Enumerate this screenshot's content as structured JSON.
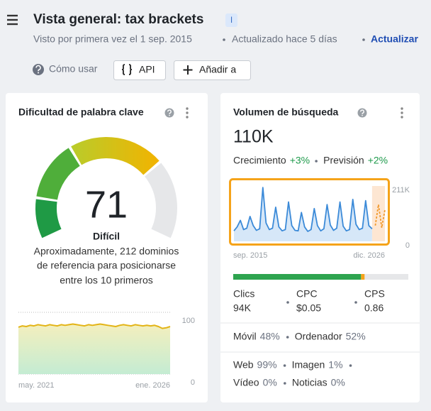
{
  "header": {
    "title": "Vista general: tax brackets",
    "intent_badge": "I",
    "first_seen": "Visto por primera vez el 1 sep. 2015",
    "updated": "Actualizado hace 5 días",
    "update_link": "Actualizar"
  },
  "toolbar": {
    "how_to": "Cómo usar",
    "api_button": "API",
    "add_button": "Añadir a"
  },
  "difficulty_card": {
    "title": "Dificultad de palabra clave",
    "score": 71,
    "gauge_lim": [
      0,
      100
    ],
    "level": "Difícil",
    "description_lines": [
      "Aproximadamente, 212 dominios",
      "de referencia para posicionarse",
      "entre los 10 primeros"
    ],
    "history": {
      "type": "area",
      "color": "#e3b416",
      "values": [
        76,
        78,
        77,
        79,
        78,
        80,
        79,
        78,
        80,
        79,
        78,
        80,
        79,
        80,
        81,
        80,
        79,
        78,
        80,
        79,
        80,
        81,
        80,
        79,
        78,
        77,
        79,
        80,
        79,
        78,
        80,
        79,
        78,
        79,
        78,
        79,
        77,
        74,
        75,
        77
      ],
      "ylim": [
        0,
        100
      ],
      "yticks": [
        0,
        100
      ],
      "x_start": "may. 2021",
      "x_end": "ene. 2026"
    }
  },
  "volume_card": {
    "title": "Volumen de búsqueda",
    "volume": "110K",
    "growth_label": "Crecimiento",
    "growth": "+3%",
    "forecast_label": "Previsión",
    "forecast": "+2%",
    "trend": {
      "type": "area",
      "color": "#3b8ad8",
      "values": [
        40,
        55,
        80,
        45,
        50,
        95,
        60,
        42,
        48,
        205,
        70,
        45,
        50,
        130,
        55,
        40,
        45,
        150,
        60,
        42,
        40,
        110,
        55,
        38,
        45,
        125,
        60,
        40,
        48,
        140,
        62,
        42,
        50,
        150,
        58,
        40,
        45,
        160,
        65,
        45,
        50,
        155,
        60,
        48
      ],
      "forecast_values": [
        60,
        140,
        52,
        120
      ],
      "forecast_color": "#f29a2e",
      "ylim": [
        0,
        211
      ],
      "yticks": [
        0,
        {
          "value": 211,
          "label": "211K"
        }
      ],
      "x_start": "sep. 2015",
      "x_end": "dic. 2026"
    },
    "traffic_split": [
      {
        "color": "#2ea44f",
        "value": 73
      },
      {
        "color": "#f5a31a",
        "value": 2
      }
    ],
    "stats": [
      {
        "label": "Clics",
        "value": "94K"
      },
      {
        "label": "CPC",
        "value": "$0.05"
      },
      {
        "label": "CPS",
        "value": "0.86"
      }
    ],
    "devices": [
      {
        "label": "Móvil",
        "value": "48%"
      },
      {
        "label": "Ordenador",
        "value": "52%"
      }
    ],
    "serp_types": [
      {
        "label": "Web",
        "value": "99%"
      },
      {
        "label": "Imagen",
        "value": "1%"
      },
      {
        "label": "Vídeo",
        "value": "0%"
      },
      {
        "label": "Noticias",
        "value": "0%"
      }
    ]
  }
}
